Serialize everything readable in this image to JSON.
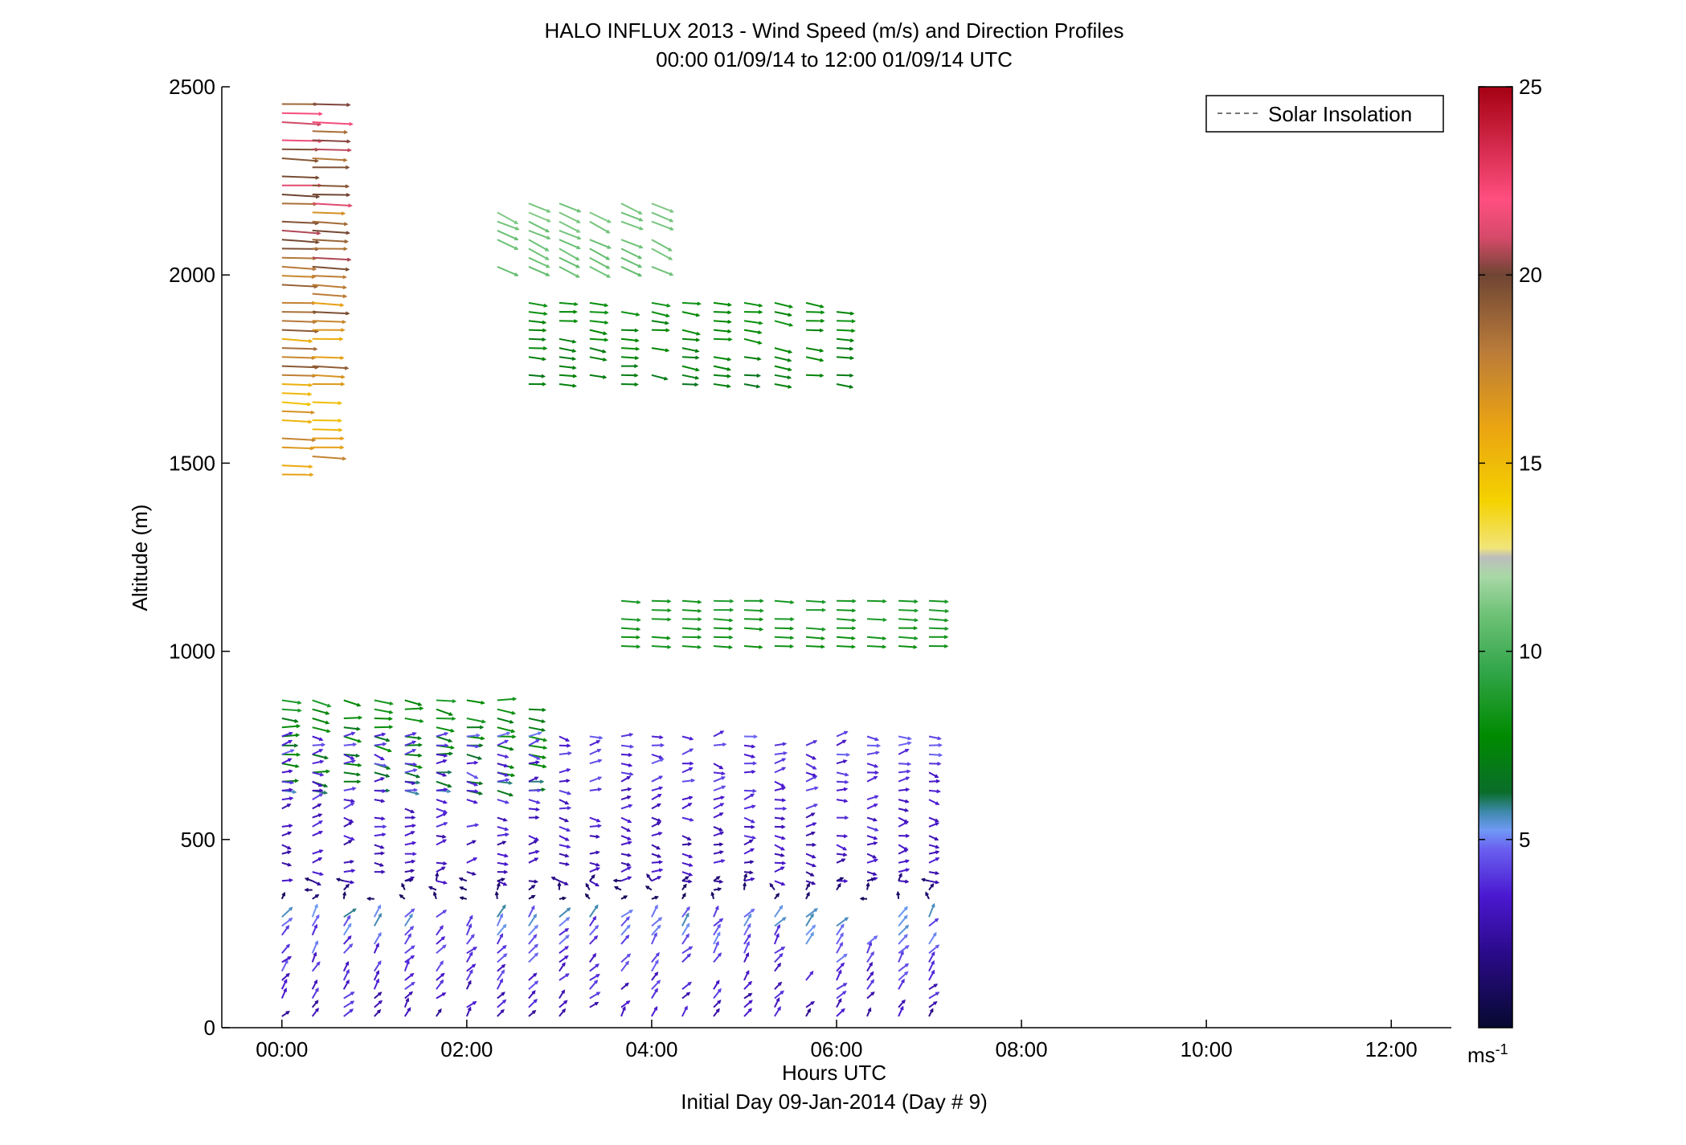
{
  "chart_data": {
    "type": "quiver",
    "title": "HALO INFLUX 2013 - Wind Speed (m/s) and Direction Profiles",
    "subtitle": "00:00 01/09/14 to 12:00 01/09/14  UTC",
    "xlabel": "Hours UTC",
    "xlabel2": "Initial Day 09-Jan-2014 (Day # 9)",
    "ylabel": "Altitude (m)",
    "xlim": [
      -0.65,
      12.65
    ],
    "ylim": [
      0,
      2500
    ],
    "x_ticks": [
      0,
      2,
      4,
      6,
      8,
      10,
      12
    ],
    "x_tick_labels": [
      "00:00",
      "02:00",
      "04:00",
      "06:00",
      "08:00",
      "10:00",
      "12:00"
    ],
    "y_ticks": [
      0,
      500,
      1000,
      1500,
      2000,
      2500
    ],
    "y_tick_labels": [
      "0",
      "500",
      "1000",
      "1500",
      "2000",
      "2500"
    ],
    "legend": {
      "label": "Solar Insolation",
      "placement": "top-right",
      "style": "dashed"
    },
    "colorbar": {
      "label": "ms",
      "label_sup": "-1",
      "range": [
        0,
        25
      ],
      "ticks": [
        5,
        10,
        15,
        20,
        25
      ],
      "tick_labels": [
        "5",
        "10",
        "15",
        "20",
        "25"
      ]
    },
    "profile_times_hours": [
      0,
      0.33,
      0.67,
      1.0,
      1.33,
      1.67,
      2.0,
      2.33,
      2.67,
      3.0,
      3.33,
      3.67,
      4.0,
      4.33,
      4.67,
      5.0,
      5.33,
      5.67,
      6.0,
      6.33,
      6.67,
      7.0
    ],
    "segments": [
      {
        "hours": [
          0,
          0.33
        ],
        "altitude": [
          1450,
          2460
        ],
        "speed": [
          13.5,
          22.5
        ],
        "direction_deg": [
          270,
          275
        ]
      },
      {
        "hours": [
          2.33,
          4.0
        ],
        "altitude": [
          2000,
          2200
        ],
        "speed": [
          10.5,
          11.5
        ],
        "direction_deg": [
          290,
          300
        ]
      },
      {
        "hours": [
          2.67,
          6.0
        ],
        "altitude": [
          1700,
          1930
        ],
        "speed": [
          6.5,
          8.5
        ],
        "direction_deg": [
          270,
          285
        ]
      },
      {
        "hours": [
          3.67,
          7.0
        ],
        "altitude": [
          1000,
          1140
        ],
        "speed": [
          8.0,
          9.0
        ],
        "direction_deg": [
          270,
          275
        ]
      },
      {
        "hours": [
          0,
          2.67
        ],
        "altitude": [
          620,
          880
        ],
        "speed": [
          5.5,
          9.0
        ],
        "direction_deg": [
          265,
          290
        ]
      },
      {
        "hours": [
          0,
          7.0
        ],
        "altitude": [
          380,
          780
        ],
        "speed": [
          2.0,
          5.0
        ],
        "direction_deg": [
          240,
          300
        ]
      },
      {
        "hours": [
          0,
          7.0
        ],
        "altitude": [
          320,
          390
        ],
        "speed": [
          0.5,
          2.0
        ],
        "direction_deg": [
          90,
          270
        ]
      },
      {
        "hours": [
          0,
          7.2
        ],
        "altitude": [
          30,
          300
        ],
        "speed": [
          2.0,
          6.0
        ],
        "direction_deg": [
          200,
          240
        ]
      }
    ]
  }
}
